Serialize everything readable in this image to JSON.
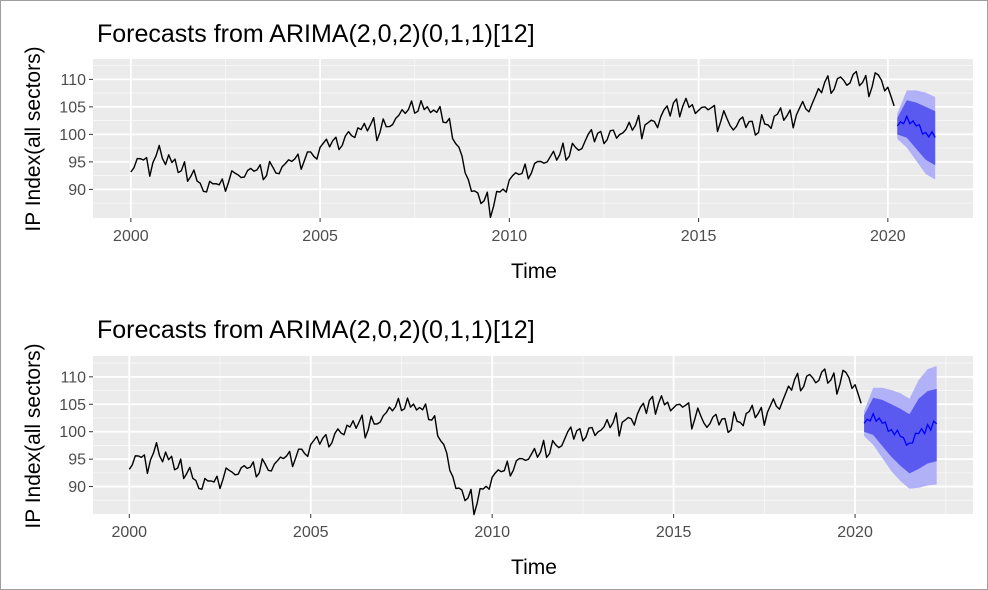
{
  "colors": {
    "panel_background": "#ebebeb",
    "grid_major": "#ffffff",
    "series": "#000000",
    "forecast_mean": "#0000ff",
    "interval_80": "#5a5af0",
    "interval_95": "#b1b1f8",
    "tick_text": "#4d4d4d"
  },
  "chart_data": [
    {
      "type": "line",
      "title": "Forecasts from ARIMA(2,0,2)(0,1,1)[12]",
      "xlabel": "Time",
      "ylabel": "IP Index(all sectors)",
      "x_ticks": [
        2000,
        2005,
        2010,
        2015,
        2020
      ],
      "y_ticks": [
        90,
        95,
        100,
        105,
        110
      ],
      "xlim": [
        1999.0,
        2022.25
      ],
      "ylim": [
        84.8,
        113.7
      ],
      "grid": true,
      "legend": "none",
      "anchors": [
        [
          2000.0,
          93.0
        ],
        [
          2000.25,
          95.0
        ],
        [
          2000.5,
          94.0
        ],
        [
          2000.75,
          97.0
        ],
        [
          2001.0,
          95.5
        ],
        [
          2001.25,
          94.0
        ],
        [
          2001.5,
          93.0
        ],
        [
          2001.75,
          92.0
        ],
        [
          2002.0,
          90.0
        ],
        [
          2002.5,
          91.5
        ],
        [
          2003.0,
          93.0
        ],
        [
          2003.5,
          93.5
        ],
        [
          2004.0,
          94.0
        ],
        [
          2004.5,
          95.5
        ],
        [
          2005.0,
          97.5
        ],
        [
          2005.5,
          99.0
        ],
        [
          2006.0,
          100.5
        ],
        [
          2006.5,
          101.5
        ],
        [
          2007.0,
          102.5
        ],
        [
          2007.5,
          105.5
        ],
        [
          2008.0,
          104.5
        ],
        [
          2008.5,
          101.0
        ],
        [
          2008.75,
          96.0
        ],
        [
          2009.0,
          90.0
        ],
        [
          2009.25,
          87.0
        ],
        [
          2009.5,
          87.5
        ],
        [
          2009.75,
          89.5
        ],
        [
          2010.0,
          91.0
        ],
        [
          2010.5,
          93.5
        ],
        [
          2011.0,
          95.5
        ],
        [
          2011.5,
          97.0
        ],
        [
          2012.0,
          98.5
        ],
        [
          2012.5,
          100.0
        ],
        [
          2013.0,
          100.5
        ],
        [
          2013.5,
          101.5
        ],
        [
          2014.0,
          103.0
        ],
        [
          2014.5,
          105.5
        ],
        [
          2015.0,
          105.0
        ],
        [
          2015.5,
          103.5
        ],
        [
          2016.0,
          102.0
        ],
        [
          2016.5,
          101.5
        ],
        [
          2017.0,
          103.0
        ],
        [
          2017.5,
          104.0
        ],
        [
          2018.0,
          106.0
        ],
        [
          2018.5,
          109.5
        ],
        [
          2019.0,
          110.0
        ],
        [
          2019.5,
          109.5
        ],
        [
          2019.75,
          110.5
        ],
        [
          2020.0,
          108.0
        ],
        [
          2020.17,
          104.5
        ]
      ],
      "forecast": {
        "x": [
          2020.25,
          2020.5,
          2020.75,
          2021.0,
          2021.25
        ],
        "mean": [
          101.5,
          102.8,
          101.6,
          100.2,
          99.3
        ],
        "lo80": [
          100.0,
          99.4,
          97.4,
          95.4,
          94.4
        ],
        "hi80": [
          103.0,
          106.2,
          105.8,
          105.0,
          104.2
        ],
        "lo95": [
          99.2,
          97.6,
          95.2,
          92.8,
          91.8
        ],
        "hi95": [
          103.8,
          108.0,
          108.0,
          107.6,
          106.8
        ]
      }
    },
    {
      "type": "line",
      "title": "Forecasts from ARIMA(2,0,2)(0,1,1)[12]",
      "xlabel": "Time",
      "ylabel": "IP Index(all sectors)",
      "x_ticks": [
        2000,
        2005,
        2010,
        2015,
        2020
      ],
      "y_ticks": [
        90,
        95,
        100,
        105,
        110
      ],
      "xlim": [
        1999.0,
        2023.25
      ],
      "ylim": [
        85.0,
        113.8
      ],
      "grid": true,
      "legend": "none",
      "anchors": [
        [
          2000.0,
          93.0
        ],
        [
          2000.25,
          95.0
        ],
        [
          2000.5,
          94.0
        ],
        [
          2000.75,
          97.0
        ],
        [
          2001.0,
          95.5
        ],
        [
          2001.25,
          94.0
        ],
        [
          2001.5,
          93.0
        ],
        [
          2001.75,
          92.0
        ],
        [
          2002.0,
          90.0
        ],
        [
          2002.5,
          91.5
        ],
        [
          2003.0,
          93.0
        ],
        [
          2003.5,
          93.5
        ],
        [
          2004.0,
          94.0
        ],
        [
          2004.5,
          95.5
        ],
        [
          2005.0,
          97.5
        ],
        [
          2005.5,
          99.0
        ],
        [
          2006.0,
          100.5
        ],
        [
          2006.5,
          101.5
        ],
        [
          2007.0,
          102.5
        ],
        [
          2007.5,
          105.5
        ],
        [
          2008.0,
          104.5
        ],
        [
          2008.5,
          101.0
        ],
        [
          2008.75,
          96.0
        ],
        [
          2009.0,
          90.0
        ],
        [
          2009.25,
          87.0
        ],
        [
          2009.5,
          87.5
        ],
        [
          2009.75,
          89.5
        ],
        [
          2010.0,
          91.0
        ],
        [
          2010.5,
          93.5
        ],
        [
          2011.0,
          95.5
        ],
        [
          2011.5,
          97.0
        ],
        [
          2012.0,
          98.5
        ],
        [
          2012.5,
          100.0
        ],
        [
          2013.0,
          100.5
        ],
        [
          2013.5,
          101.5
        ],
        [
          2014.0,
          103.0
        ],
        [
          2014.5,
          105.5
        ],
        [
          2015.0,
          105.0
        ],
        [
          2015.5,
          103.5
        ],
        [
          2016.0,
          102.0
        ],
        [
          2016.5,
          101.5
        ],
        [
          2017.0,
          103.0
        ],
        [
          2017.5,
          104.0
        ],
        [
          2018.0,
          106.0
        ],
        [
          2018.5,
          109.5
        ],
        [
          2019.0,
          110.0
        ],
        [
          2019.5,
          109.5
        ],
        [
          2019.75,
          110.5
        ],
        [
          2020.0,
          108.0
        ],
        [
          2020.17,
          104.5
        ]
      ],
      "forecast": {
        "x": [
          2020.25,
          2020.5,
          2020.75,
          2021.0,
          2021.25,
          2021.5,
          2021.75,
          2022.0,
          2022.25
        ],
        "mean": [
          101.5,
          102.8,
          101.6,
          100.2,
          99.0,
          97.8,
          99.6,
          100.8,
          101.2
        ],
        "lo80": [
          100.0,
          99.4,
          97.4,
          95.4,
          93.8,
          92.4,
          93.2,
          94.2,
          94.6
        ],
        "hi80": [
          103.0,
          106.2,
          105.8,
          105.0,
          104.2,
          103.2,
          106.0,
          107.4,
          107.8
        ],
        "lo95": [
          99.2,
          97.6,
          95.2,
          92.8,
          91.0,
          89.6,
          89.8,
          90.2,
          90.4
        ],
        "hi95": [
          103.8,
          108.0,
          108.0,
          107.6,
          107.0,
          106.0,
          109.4,
          111.4,
          112.0
        ]
      }
    }
  ]
}
